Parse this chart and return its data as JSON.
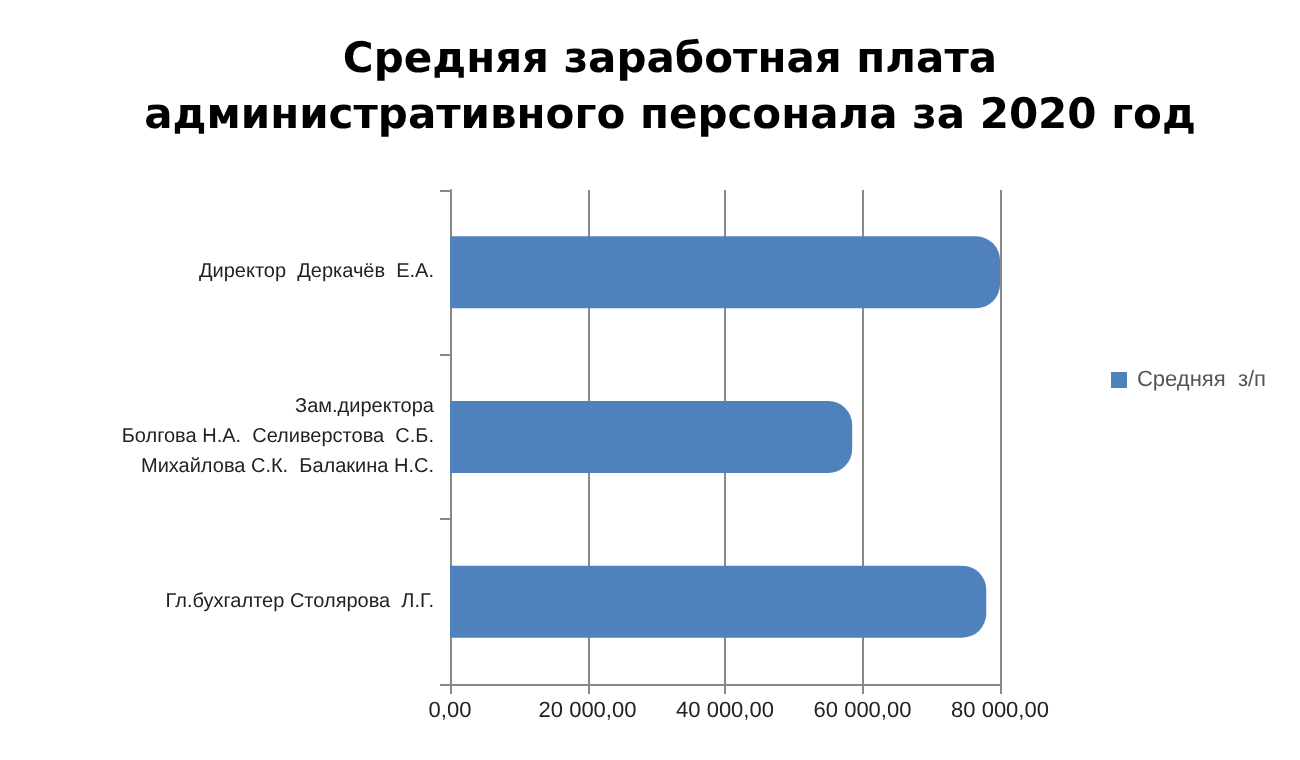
{
  "chart_data": {
    "type": "bar",
    "orientation": "horizontal",
    "title": "Средняя заработная плата\nадминистративного персонала за 2020 год",
    "categories": [
      "Директор  Деркачёв  Е.А.",
      "Зам.директора\nБолгова Н.А.  Селиверстова  С.Б.\nМихайлова С.К.  Балакина Н.С.",
      "Гл.бухгалтер Столярова  Л.Г."
    ],
    "series": [
      {
        "name": "Средняя  з/п",
        "color": "#4f81bd",
        "values": [
          80000,
          58500,
          78000
        ]
      }
    ],
    "xlim": [
      0,
      80000
    ],
    "xticks": [
      {
        "value": 0,
        "label": "0,00"
      },
      {
        "value": 20000,
        "label": "20 000,00"
      },
      {
        "value": 40000,
        "label": "40 000,00"
      },
      {
        "value": 60000,
        "label": "60 000,00"
      },
      {
        "value": 80000,
        "label": "80 000,00"
      }
    ],
    "grid": "x",
    "legend": "right"
  }
}
